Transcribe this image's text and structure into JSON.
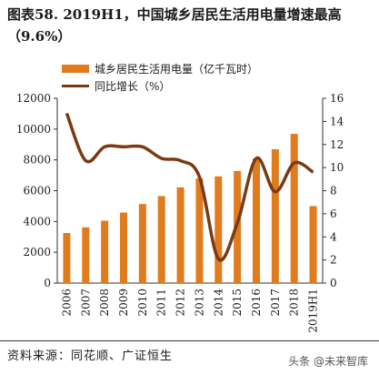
{
  "page": {
    "title": "图表58. 2019H1，中国城乡居民生活用电量增速最高（9.6%）",
    "source": "资料来源：同花顺、广证恒生",
    "watermark": "头条 @未来智库"
  },
  "colors": {
    "bar": "#e07b1e",
    "line": "#7a3a12",
    "axis": "#333333"
  },
  "chart_data": {
    "type": "bar+line",
    "categories": [
      "2006",
      "2007",
      "2008",
      "2009",
      "2010",
      "2011",
      "2012",
      "2013",
      "2014",
      "2015",
      "2016",
      "2017",
      "2018",
      "2019H1"
    ],
    "series": [
      {
        "name": "城乡居民生活用电量（亿千瓦时）",
        "type": "bar",
        "axis": "left",
        "values": [
          3250,
          3620,
          4050,
          4580,
          5130,
          5650,
          6220,
          6800,
          6930,
          7280,
          8100,
          8690,
          9690,
          5000
        ]
      },
      {
        "name": "同比增长（%）",
        "type": "line",
        "axis": "right",
        "values": [
          14.7,
          10.6,
          11.8,
          11.8,
          11.8,
          10.8,
          10.6,
          9.2,
          2.1,
          5.2,
          10.8,
          7.9,
          10.4,
          9.6
        ]
      }
    ],
    "y_left": {
      "min": 0,
      "max": 12000,
      "ticks": [
        "0",
        "2000",
        "4000",
        "6000",
        "8000",
        "10000",
        "12000"
      ]
    },
    "y_right": {
      "min": 0,
      "max": 16,
      "ticks": [
        "0",
        "2",
        "4",
        "6",
        "8",
        "10",
        "12",
        "14",
        "16"
      ]
    },
    "grid": false,
    "legend_position": "top-left"
  }
}
